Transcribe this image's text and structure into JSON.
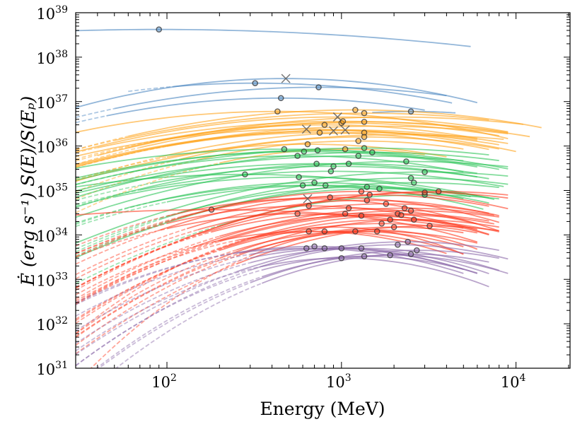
{
  "chart_data": {
    "type": "line",
    "xlabel": "Energy (MeV)",
    "ylabel": "Ė (erg s⁻¹)  S(E)/S(Eₚ)",
    "xscale": "log",
    "yscale": "log",
    "xlim": [
      30,
      20400
    ],
    "ylim": [
      1e+31,
      1e+39
    ],
    "grid": false,
    "x_ticks": [
      {
        "base": "10",
        "exp": "2",
        "value": 100
      },
      {
        "base": "10",
        "exp": "3",
        "value": 1000
      },
      {
        "base": "10",
        "exp": "4",
        "value": 10000
      }
    ],
    "y_ticks": [
      {
        "base": "10",
        "exp": "31",
        "value": 1e+31
      },
      {
        "base": "10",
        "exp": "32",
        "value": 1e+32
      },
      {
        "base": "10",
        "exp": "33",
        "value": 1e+33
      },
      {
        "base": "10",
        "exp": "34",
        "value": 1e+34
      },
      {
        "base": "10",
        "exp": "35",
        "value": 1e+35
      },
      {
        "base": "10",
        "exp": "36",
        "value": 1e+36
      },
      {
        "base": "10",
        "exp": "37",
        "value": 1e+37
      },
      {
        "base": "10",
        "exp": "38",
        "value": 1e+38
      },
      {
        "base": "10",
        "exp": "39",
        "value": 1e+39
      }
    ],
    "curve_model": "log-parabola: value(E) = peak_value * 10^(-curvature * log10(E/peak_energy)^2)",
    "curve_columns": [
      "peak_energy_MeV",
      "peak_value",
      "curvature",
      "E_min",
      "E_max",
      "dashed_below_E",
      "marker"
    ],
    "groups": [
      {
        "color": "#4a86c0",
        "curves": [
          [
            90,
            4.2e+38,
            0.12,
            30,
            5500,
            0,
            "o"
          ],
          [
            480,
            3.3e+37,
            0.45,
            30,
            6000,
            0,
            "x"
          ],
          [
            320,
            2.6e+37,
            0.35,
            60,
            4300,
            110,
            "o"
          ],
          [
            740,
            2.1e+37,
            0.35,
            30,
            4000,
            50,
            "o"
          ],
          [
            450,
            1.2e+37,
            0.4,
            30,
            3000,
            45,
            "o"
          ],
          [
            2500,
            6e+36,
            0.5,
            1500,
            4500,
            0,
            "o"
          ]
        ]
      },
      {
        "color": "#ffa31a",
        "curves": [
          [
            430,
            6e+36,
            0.35,
            30,
            9000,
            0,
            "o"
          ],
          [
            1200,
            6.5e+36,
            0.35,
            30,
            14000,
            60,
            "o"
          ],
          [
            1350,
            5.5e+36,
            0.3,
            30,
            7000,
            50,
            "o"
          ],
          [
            950,
            4.5e+36,
            0.35,
            30,
            9000,
            0,
            "x"
          ],
          [
            1000,
            3.3e+36,
            0.35,
            30,
            8000,
            80,
            "o"
          ],
          [
            1020,
            3.6e+36,
            0.3,
            30,
            12000,
            40,
            "o"
          ],
          [
            800,
            3e+36,
            0.4,
            30,
            6000,
            60,
            "o"
          ],
          [
            630,
            2.4e+36,
            0.35,
            30,
            10000,
            0,
            "x"
          ],
          [
            1350,
            3.5e+36,
            0.35,
            30,
            9000,
            70,
            "o"
          ],
          [
            750,
            2e+36,
            0.4,
            30,
            7000,
            100,
            "o"
          ],
          [
            900,
            2.2e+36,
            0.35,
            30,
            8000,
            0,
            "x"
          ],
          [
            1050,
            2.3e+36,
            0.35,
            30,
            9000,
            0,
            "x"
          ],
          [
            1350,
            2e+36,
            0.4,
            30,
            6000,
            90,
            "o"
          ],
          [
            1350,
            1.6e+36,
            0.45,
            30,
            8000,
            120,
            "o"
          ],
          [
            1250,
            1.3e+36,
            0.5,
            30,
            5000,
            150,
            "o"
          ],
          [
            640,
            1.1e+36,
            0.45,
            30,
            4000,
            100,
            "o"
          ],
          [
            1050,
            8.5e+35,
            0.6,
            30,
            3000,
            200,
            "o"
          ],
          [
            2000,
            4.5e+36,
            0.3,
            40,
            11000,
            0,
            ""
          ],
          [
            1600,
            2.8e+36,
            0.3,
            30,
            9000,
            0,
            ""
          ],
          [
            2200,
            1.8e+36,
            0.3,
            30,
            8500,
            0,
            ""
          ]
        ]
      },
      {
        "color": "#2ec55a",
        "curves": [
          [
            470,
            8.5e+35,
            0.3,
            30,
            8000,
            0,
            "o"
          ],
          [
            610,
            7.5e+35,
            0.35,
            30,
            6000,
            0,
            "o"
          ],
          [
            730,
            8e+35,
            0.35,
            30,
            9000,
            0,
            "o"
          ],
          [
            1500,
            7.2e+35,
            0.35,
            30,
            8000,
            0,
            "o"
          ],
          [
            560,
            6e+35,
            0.4,
            30,
            5000,
            60,
            "o"
          ],
          [
            1350,
            9e+35,
            0.3,
            30,
            7000,
            0,
            "o"
          ],
          [
            1250,
            6e+35,
            0.3,
            30,
            5000,
            0,
            "o"
          ],
          [
            720,
            4e+35,
            0.35,
            30,
            6000,
            0,
            "o"
          ],
          [
            900,
            3.5e+35,
            0.35,
            30,
            7000,
            80,
            "o"
          ],
          [
            1100,
            4e+35,
            0.4,
            30,
            6000,
            0,
            "o"
          ],
          [
            2350,
            4.5e+35,
            0.35,
            30,
            9000,
            0,
            "o"
          ],
          [
            280,
            2.3e+35,
            0.3,
            30,
            5500,
            0,
            "o"
          ],
          [
            570,
            2e+35,
            0.4,
            30,
            7500,
            50,
            "o"
          ],
          [
            870,
            2.7e+35,
            0.35,
            30,
            8500,
            70,
            "o"
          ],
          [
            2500,
            1.9e+35,
            0.45,
            30,
            9000,
            90,
            "o"
          ],
          [
            2600,
            1.5e+35,
            0.45,
            30,
            8000,
            0,
            "o"
          ],
          [
            3000,
            2.6e+35,
            0.4,
            30,
            9000,
            0,
            "o"
          ],
          [
            600,
            1.3e+35,
            0.5,
            30,
            6500,
            60,
            "o"
          ],
          [
            700,
            1.5e+35,
            0.5,
            30,
            5000,
            80,
            "o"
          ],
          [
            810,
            1.3e+35,
            0.45,
            30,
            7000,
            100,
            "o"
          ],
          [
            1650,
            1.1e+35,
            0.5,
            30,
            6000,
            150,
            "o"
          ],
          [
            1400,
            1.2e+35,
            0.5,
            30,
            7000,
            120,
            "o"
          ],
          [
            3000,
            8e+34,
            0.5,
            30,
            8000,
            200,
            "o"
          ]
        ]
      },
      {
        "color": "#ff3a1f",
        "curves": [
          [
            640,
            6.5e+34,
            0.6,
            30,
            8000,
            100,
            "x"
          ],
          [
            560,
            3e+34,
            0.6,
            30,
            6000,
            100,
            "o"
          ],
          [
            650,
            4.5e+34,
            0.6,
            30,
            7000,
            100,
            "o"
          ],
          [
            860,
            7e+34,
            0.6,
            30,
            8000,
            120,
            "o"
          ],
          [
            1300,
            9.5e+34,
            0.55,
            30,
            9000,
            100,
            "o"
          ],
          [
            1450,
            8e+34,
            0.55,
            30,
            7000,
            90,
            "o"
          ],
          [
            1100,
            4e+34,
            0.65,
            30,
            6000,
            150,
            "o"
          ],
          [
            1400,
            6e+34,
            0.6,
            30,
            8000,
            130,
            "o"
          ],
          [
            2100,
            3e+34,
            0.6,
            30,
            7000,
            200,
            "o"
          ],
          [
            2500,
            3.5e+34,
            0.55,
            30,
            8000,
            180,
            "o"
          ],
          [
            3000,
            9e+34,
            0.55,
            30,
            9000,
            150,
            "o"
          ],
          [
            3600,
            9.5e+34,
            0.5,
            30,
            9000,
            120,
            "o"
          ],
          [
            180,
            3.7e+34,
            0.2,
            30,
            5000,
            0,
            "o"
          ],
          [
            1800,
            5e+34,
            0.6,
            30,
            7000,
            160,
            "o"
          ],
          [
            2300,
            4e+34,
            0.6,
            30,
            7500,
            140,
            "o"
          ],
          [
            1700,
            1.8e+34,
            0.7,
            30,
            6000,
            200,
            "o"
          ],
          [
            1900,
            2.2e+34,
            0.7,
            30,
            8000,
            220,
            "o"
          ],
          [
            2000,
            1.5e+34,
            0.8,
            30,
            5000,
            250,
            "o"
          ],
          [
            650,
            1.2e+34,
            0.8,
            30,
            4000,
            200,
            "o"
          ],
          [
            800,
            1.2e+34,
            0.8,
            30,
            5000,
            250,
            "o"
          ],
          [
            1200,
            1.2e+34,
            0.9,
            30,
            5000,
            250,
            "o"
          ],
          [
            1600,
            1.2e+34,
            0.8,
            30,
            6000,
            260,
            "o"
          ],
          [
            2600,
            2.2e+34,
            0.7,
            30,
            8000,
            200,
            "o"
          ],
          [
            3200,
            1.6e+34,
            0.7,
            30,
            8000,
            250,
            "o"
          ],
          [
            1050,
            3e+34,
            0.7,
            30,
            7000,
            180,
            "o"
          ],
          [
            1300,
            2.7e+34,
            0.7,
            30,
            6000,
            200,
            "o"
          ],
          [
            2200,
            2.8e+34,
            0.7,
            30,
            7500,
            200,
            "o"
          ],
          [
            900,
            1.5e+34,
            1.1,
            30,
            5000,
            300,
            ""
          ],
          [
            1500,
            1.3e+34,
            1.2,
            30,
            6000,
            300,
            ""
          ]
        ]
      },
      {
        "color": "#8a68a8",
        "curves": [
          [
            630,
            5e+33,
            0.7,
            30,
            5000,
            250,
            "o"
          ],
          [
            700,
            5.5e+33,
            0.7,
            30,
            6000,
            250,
            "o"
          ],
          [
            800,
            5e+33,
            0.75,
            30,
            5000,
            300,
            "o"
          ],
          [
            1000,
            5e+33,
            0.8,
            30,
            7000,
            300,
            "o"
          ],
          [
            1300,
            5e+33,
            0.8,
            30,
            8000,
            300,
            "o"
          ],
          [
            2100,
            6e+33,
            0.8,
            30,
            9000,
            300,
            "o"
          ],
          [
            2400,
            7e+33,
            0.7,
            30,
            8000,
            250,
            "o"
          ],
          [
            1000,
            3e+33,
            0.9,
            30,
            7000,
            350,
            "o"
          ],
          [
            1350,
            3.3e+33,
            0.9,
            30,
            6000,
            350,
            "o"
          ],
          [
            1900,
            3.5e+33,
            0.9,
            30,
            9000,
            350,
            "o"
          ],
          [
            2500,
            3.7e+33,
            0.9,
            30,
            7000,
            350,
            "o"
          ],
          [
            2700,
            4.5e+33,
            0.8,
            30,
            8000,
            300,
            "o"
          ]
        ]
      }
    ]
  }
}
